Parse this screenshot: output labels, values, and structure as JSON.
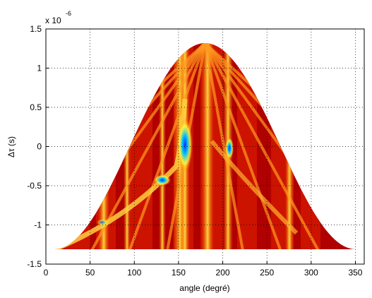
{
  "chart_data": {
    "type": "image",
    "x_label": "angle (degré)",
    "y_label": "Δτ (s)",
    "y_exponent": {
      "base": "x 10",
      "power": "-6"
    },
    "xlim": [
      0,
      360
    ],
    "xticks": [
      0,
      50,
      100,
      150,
      200,
      250,
      300,
      350
    ],
    "ylim": [
      -1.5,
      1.5
    ],
    "yticks": [
      -1.5,
      -1,
      -0.5,
      0,
      0.5,
      1,
      1.5
    ],
    "grid": true
  }
}
